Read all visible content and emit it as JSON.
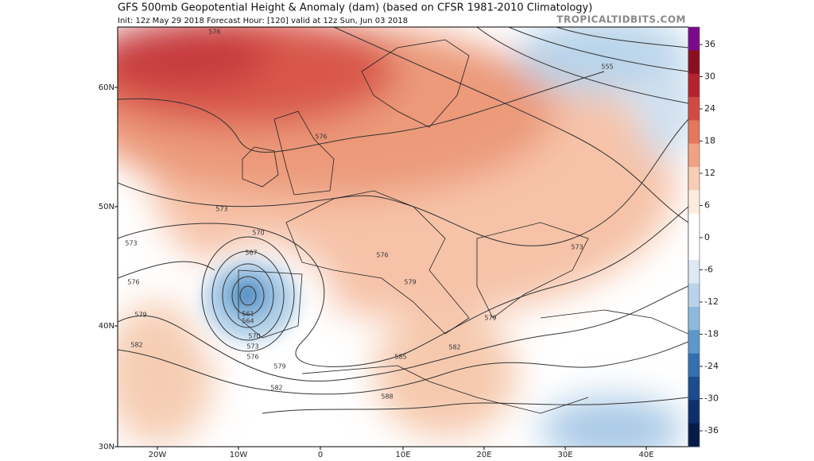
{
  "header": {
    "title": "GFS 500mb Geopotential Height & Anomaly (dam) (based on CFSR 1981-2010 Climatology)",
    "subtitle": "Init: 12z May 29 2018   Forecast Hour: [120]   valid at 12z Sun, Jun 03 2018",
    "site": "TROPICALTIDBITS.COM"
  },
  "map": {
    "lat_labels": [
      "60N",
      "50N",
      "40N",
      "30N"
    ],
    "lon_labels": [
      "20W",
      "10W",
      "0",
      "10E",
      "20E",
      "30E",
      "40E"
    ],
    "contour_labels": [
      576,
      576,
      573,
      573,
      570,
      567,
      576,
      579,
      582,
      561,
      564,
      570,
      573,
      576,
      579,
      582,
      585,
      588,
      582,
      579,
      576,
      579,
      555,
      573
    ]
  },
  "colorbar": {
    "ticks": [
      36,
      30,
      24,
      18,
      12,
      6,
      0,
      -6,
      -12,
      -18,
      -24,
      -30,
      -36
    ]
  }
}
